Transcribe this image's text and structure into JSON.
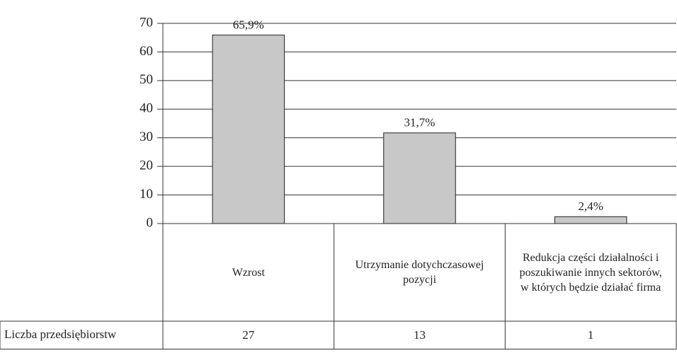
{
  "chart_data": {
    "type": "bar",
    "categories": [
      "Wzrost",
      "Utrzymanie dotychczasowej pozycji",
      "Redukcja części działalności i poszukiwanie innych sektorów, w których będzie działać firma"
    ],
    "values": [
      65.9,
      31.7,
      2.4
    ],
    "value_labels": [
      "65,9%",
      "31,7%",
      "2,4%"
    ],
    "color": "#c8c8c8",
    "ylim": [
      0,
      70
    ],
    "yticks": [
      0,
      10,
      20,
      30,
      40,
      50,
      60,
      70
    ],
    "grid": true,
    "table": {
      "label": "Liczba przedsiębiorstw",
      "values": [
        27,
        13,
        1
      ]
    }
  }
}
